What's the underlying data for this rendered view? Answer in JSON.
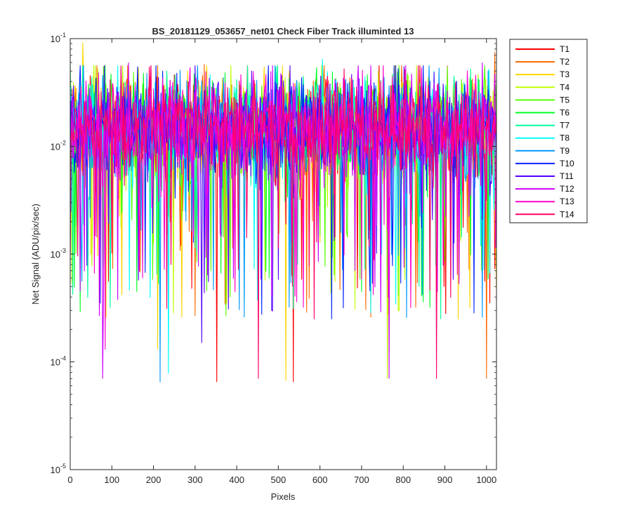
{
  "chart_data": {
    "type": "line",
    "title": "BS_20181129_053657_net01   Check Fiber     Track illuminted 13",
    "xlabel": "Pixels",
    "ylabel": "Net Signal (ADU/pix/sec)",
    "xlim": [
      0,
      1024
    ],
    "ylim": [
      1e-05,
      0.1
    ],
    "yscale": "log",
    "grid": false,
    "legend_position": "outside-top-right",
    "x_ticks": [
      0,
      100,
      200,
      300,
      400,
      500,
      600,
      700,
      800,
      900,
      1000
    ],
    "x_tick_labels": [
      "0",
      "100",
      "200",
      "300",
      "400",
      "500",
      "600",
      "700",
      "800",
      "900",
      "1000"
    ],
    "y_ticks": [
      1e-05,
      0.0001,
      0.001,
      0.01,
      0.1
    ],
    "y_tick_labels": [
      {
        "base": "10",
        "exp": "-5"
      },
      {
        "base": "10",
        "exp": "-4"
      },
      {
        "base": "10",
        "exp": "-3"
      },
      {
        "base": "10",
        "exp": "-2"
      },
      {
        "base": "10",
        "exp": "-1"
      }
    ],
    "signal_band": {
      "typical_min": 0.003,
      "typical_max": 0.04,
      "median": 0.015
    },
    "series": [
      {
        "name": "T1",
        "color": "#ff0000",
        "min_dips": [
          [
            352,
            6.5e-05
          ],
          [
            536,
            6.5e-05
          ]
        ]
      },
      {
        "name": "T2",
        "color": "#ff6a00",
        "peaks": [
          [
            322,
            0.058
          ],
          [
            1020,
            0.075
          ]
        ],
        "min_dips": [
          [
            1000,
            7e-05
          ]
        ]
      },
      {
        "name": "T3",
        "color": "#ffd500",
        "peaks": [
          [
            30,
            0.092
          ]
        ],
        "min_dips": [
          [
            210,
            0.00013
          ],
          [
            518,
            6.7e-05
          ]
        ]
      },
      {
        "name": "T4",
        "color": "#c0ff00",
        "min_dips": [
          [
            762,
            7e-05
          ]
        ]
      },
      {
        "name": "T5",
        "color": "#55ff00",
        "peaks": [
          [
            905,
            0.055
          ]
        ]
      },
      {
        "name": "T6",
        "color": "#00ff22",
        "peaks": [
          [
            175,
            0.048
          ]
        ]
      },
      {
        "name": "T7",
        "color": "#00ff99",
        "peaks": [
          [
            560,
            0.045
          ]
        ]
      },
      {
        "name": "T8",
        "color": "#00ffff",
        "peaks": [
          [
            605,
            0.065
          ]
        ],
        "min_dips": [
          [
            235,
            7.8e-05
          ]
        ]
      },
      {
        "name": "T9",
        "color": "#0099ff",
        "min_dips": [
          [
            215,
            6.5e-05
          ]
        ]
      },
      {
        "name": "T10",
        "color": "#0022ff",
        "peaks": [
          [
            255,
            0.048
          ]
        ]
      },
      {
        "name": "T11",
        "color": "#5500ff",
        "min_dips": [
          [
            315,
            0.00015
          ]
        ]
      },
      {
        "name": "T12",
        "color": "#cc00ff",
        "peaks": [
          [
            140,
            0.06
          ],
          [
            990,
            0.06
          ]
        ],
        "min_dips": [
          [
            78,
            7e-05
          ],
          [
            765,
            7e-05
          ]
        ]
      },
      {
        "name": "T13",
        "color": "#ff00cc",
        "peaks": [
          [
            440,
            0.05
          ]
        ],
        "min_dips": [
          [
            83,
            0.00013
          ]
        ]
      },
      {
        "name": "T14",
        "color": "#ff0066",
        "min_dips": [
          [
            452,
            7e-05
          ],
          [
            880,
            7e-05
          ]
        ]
      }
    ]
  }
}
